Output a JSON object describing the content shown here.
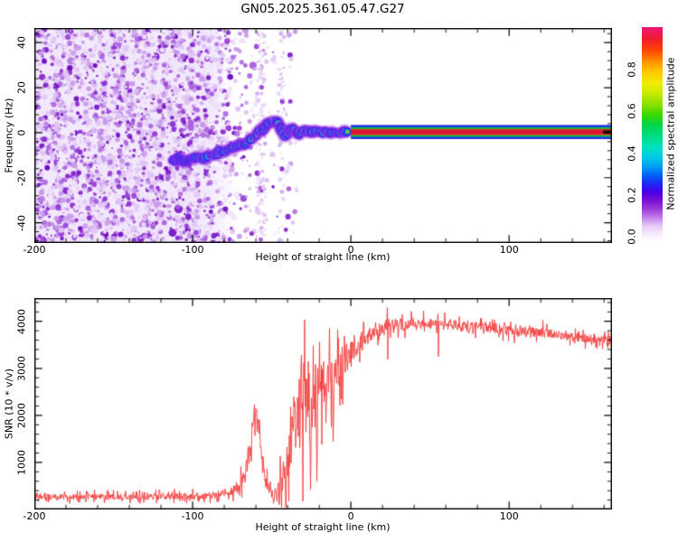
{
  "title": "GN05.2025.361.05.47.G27",
  "panels": {
    "spectrogram": {
      "xlabel": "Height of straight line (km)",
      "ylabel": "Frequency (Hz)",
      "x_tick_labels": [
        "-200",
        "-100",
        "0",
        "100"
      ],
      "y_tick_labels": [
        "40",
        "20",
        "0",
        "-20",
        "-40"
      ],
      "colorbar": {
        "label": "Normalized spectral amplitude",
        "tick_labels": [
          "0.0",
          "0.2",
          "0.4",
          "0.6",
          "0.8"
        ]
      }
    },
    "snr": {
      "xlabel": "Height of straight line (km)",
      "ylabel": "SNR (10 * v/v)",
      "x_tick_labels": [
        "-200",
        "-100",
        "0",
        "100"
      ],
      "y_tick_labels": [
        "1000",
        "2000",
        "3000",
        "4000"
      ]
    }
  },
  "chart_data": [
    {
      "type": "heatmap",
      "title": "GN05.2025.361.05.47.G27",
      "xlabel": "Height of straight line (km)",
      "ylabel": "Frequency (Hz)",
      "xlim": [
        -200,
        165
      ],
      "ylim": [
        -49,
        46.5
      ],
      "x_ticks": [
        -200,
        -100,
        0,
        100
      ],
      "x_minor_step": 20,
      "y_ticks": [
        40,
        20,
        0,
        -20,
        -40
      ],
      "y_minor_step": 4,
      "grid": false,
      "colorbar": {
        "label": "Normalized spectral amplitude",
        "ticks": [
          0,
          0.2,
          0.4,
          0.6,
          0.8
        ],
        "lim": [
          0,
          1
        ],
        "colormap": [
          [
            0.0,
            "#ffffff"
          ],
          [
            0.03,
            "#f6eefc"
          ],
          [
            0.07,
            "#e7cdf6"
          ],
          [
            0.11,
            "#c37fe8"
          ],
          [
            0.15,
            "#9b3bdc"
          ],
          [
            0.19,
            "#7a10d4"
          ],
          [
            0.23,
            "#4400e8"
          ],
          [
            0.27,
            "#1b2af5"
          ],
          [
            0.31,
            "#0064f8"
          ],
          [
            0.35,
            "#00a0f0"
          ],
          [
            0.39,
            "#00c8e6"
          ],
          [
            0.44,
            "#00e2c0"
          ],
          [
            0.49,
            "#00dc82"
          ],
          [
            0.54,
            "#00d44e"
          ],
          [
            0.59,
            "#38d800"
          ],
          [
            0.64,
            "#8ce000"
          ],
          [
            0.69,
            "#c8ea00"
          ],
          [
            0.74,
            "#f0ee00"
          ],
          [
            0.79,
            "#ffc800"
          ],
          [
            0.84,
            "#ff9000"
          ],
          [
            0.89,
            "#ff4600"
          ],
          [
            0.94,
            "#f01e28"
          ],
          [
            1.0,
            "#ee1478"
          ]
        ]
      },
      "noise_field": {
        "dense_range": [
          -200,
          -90
        ],
        "fade_range": [
          -90,
          -34
        ],
        "base_tint": "#f2e9fb",
        "palette": [
          [
            "#efe2fa",
            0.28
          ],
          [
            "#e0c4f4",
            0.24
          ],
          [
            "#c897ea",
            0.18
          ],
          [
            "#aa60dd",
            0.13
          ],
          [
            "#8c2bd2",
            0.1
          ],
          [
            "#7312c4",
            0.07
          ]
        ]
      },
      "vertical_streaks": [
        {
          "x": -57,
          "width": 6
        },
        {
          "x": -44,
          "width": 4
        }
      ],
      "trace": [
        {
          "x": -113,
          "f": -12.5,
          "a": 0.28
        },
        {
          "x": -109,
          "f": -11.5,
          "a": 0.32
        },
        {
          "x": -105,
          "f": -13.0,
          "a": 0.35
        },
        {
          "x": -101,
          "f": -12.0,
          "a": 0.38
        },
        {
          "x": -97,
          "f": -11.0,
          "a": 0.42
        },
        {
          "x": -93,
          "f": -11.5,
          "a": 0.45
        },
        {
          "x": -89,
          "f": -9.5,
          "a": 0.5
        },
        {
          "x": -86,
          "f": -10.0,
          "a": 0.5
        },
        {
          "x": -83,
          "f": -8.0,
          "a": 0.55
        },
        {
          "x": -80,
          "f": -8.5,
          "a": 0.52
        },
        {
          "x": -77,
          "f": -7.0,
          "a": 0.58
        },
        {
          "x": -74,
          "f": -6.5,
          "a": 0.6
        },
        {
          "x": -71,
          "f": -5.0,
          "a": 0.62
        },
        {
          "x": -68,
          "f": -5.5,
          "a": 0.6
        },
        {
          "x": -65,
          "f": -3.5,
          "a": 0.65
        },
        {
          "x": -62,
          "f": -2.0,
          "a": 0.68
        },
        {
          "x": -59,
          "f": -0.5,
          "a": 0.7
        },
        {
          "x": -56,
          "f": 1.5,
          "a": 0.72
        },
        {
          "x": -53,
          "f": 3.5,
          "a": 0.8
        },
        {
          "x": -50,
          "f": 4.8,
          "a": 0.85
        },
        {
          "x": -47,
          "f": 4.6,
          "a": 0.82
        },
        {
          "x": -45,
          "f": 3.5,
          "a": 0.75
        },
        {
          "x": -43,
          "f": -0.5,
          "a": 0.68
        },
        {
          "x": -41,
          "f": -1.5,
          "a": 0.65
        },
        {
          "x": -39,
          "f": 0.5,
          "a": 0.72
        },
        {
          "x": -37,
          "f": 1.8,
          "a": 0.78
        },
        {
          "x": -35,
          "f": 0.5,
          "a": 0.75
        },
        {
          "x": -33,
          "f": -0.8,
          "a": 0.78
        },
        {
          "x": -31,
          "f": 0.0,
          "a": 0.85
        },
        {
          "x": -29,
          "f": 1.0,
          "a": 0.88
        },
        {
          "x": -27,
          "f": 0.3,
          "a": 0.85
        },
        {
          "x": -25,
          "f": -0.3,
          "a": 0.85
        },
        {
          "x": -23,
          "f": 0.5,
          "a": 0.88
        },
        {
          "x": -21,
          "f": 0.0,
          "a": 0.9
        },
        {
          "x": -18,
          "f": 0.4,
          "a": 0.9
        },
        {
          "x": -15,
          "f": 0.1,
          "a": 0.92
        },
        {
          "x": -12,
          "f": 0.4,
          "a": 0.92
        },
        {
          "x": -9,
          "f": 0.2,
          "a": 0.94
        },
        {
          "x": -6,
          "f": 0.3,
          "a": 0.95
        },
        {
          "x": -3,
          "f": 0.25,
          "a": 0.95
        },
        {
          "x": -0.5,
          "f": 0.3,
          "a": 0.96
        }
      ],
      "straight_line": {
        "x_range": [
          0,
          165
        ],
        "frequency": 0.3,
        "layer_colors": [
          "#2222ee",
          "#00cc44",
          "#ee2222",
          "#cc1040"
        ],
        "end_cap_color": "#2a1212"
      }
    },
    {
      "type": "line",
      "series_color": "#f23b3b",
      "xlabel": "Height of straight line (km)",
      "ylabel": "SNR (10 * v/v)",
      "xlim": [
        -200,
        165
      ],
      "ylim": [
        0,
        4494
      ],
      "x_ticks": [
        -200,
        -100,
        0,
        100
      ],
      "x_minor_step": 20,
      "y_ticks": [
        1000,
        2000,
        3000,
        4000
      ],
      "y_minor_step": 200,
      "grid": false,
      "envelope": [
        [
          -200,
          270,
          85
        ],
        [
          -160,
          270,
          85
        ],
        [
          -120,
          275,
          85
        ],
        [
          -100,
          285,
          90
        ],
        [
          -90,
          300,
          95
        ],
        [
          -82,
          320,
          105
        ],
        [
          -76,
          370,
          130
        ],
        [
          -71,
          480,
          170
        ],
        [
          -67,
          700,
          240
        ],
        [
          -64,
          1250,
          350
        ],
        [
          -62,
          1750,
          300
        ],
        [
          -60,
          2000,
          260
        ],
        [
          -58,
          1650,
          350
        ],
        [
          -56,
          1000,
          300
        ],
        [
          -54,
          640,
          230
        ],
        [
          -52,
          460,
          190
        ],
        [
          -50,
          380,
          240
        ],
        [
          -48,
          340,
          240
        ],
        [
          -46,
          380,
          330
        ],
        [
          -44,
          520,
          450
        ],
        [
          -42,
          800,
          650
        ],
        [
          -40,
          1150,
          850
        ],
        [
          -38,
          1500,
          950
        ],
        [
          -36,
          1550,
          1000
        ],
        [
          -34,
          1700,
          1050
        ],
        [
          -32,
          2000,
          1150
        ],
        [
          -30,
          2250,
          1200
        ],
        [
          -28,
          2100,
          1200
        ],
        [
          -26,
          2200,
          1100
        ],
        [
          -24,
          2350,
          1000
        ],
        [
          -22,
          2450,
          950
        ],
        [
          -20,
          2500,
          900
        ],
        [
          -18,
          2550,
          850
        ],
        [
          -16,
          2500,
          850
        ],
        [
          -14,
          2650,
          750
        ],
        [
          -12,
          2750,
          700
        ],
        [
          -10,
          2850,
          650
        ],
        [
          -8,
          2950,
          600
        ],
        [
          -6,
          3050,
          520
        ],
        [
          -4,
          3150,
          470
        ],
        [
          -2,
          3250,
          420
        ],
        [
          0,
          3350,
          380
        ],
        [
          4,
          3500,
          300
        ],
        [
          8,
          3620,
          260
        ],
        [
          12,
          3720,
          220
        ],
        [
          16,
          3790,
          200
        ],
        [
          22,
          3860,
          185
        ],
        [
          30,
          3920,
          180
        ],
        [
          40,
          3950,
          175
        ],
        [
          50,
          3950,
          175
        ],
        [
          60,
          3920,
          170
        ],
        [
          70,
          3890,
          165
        ],
        [
          80,
          3870,
          165
        ],
        [
          90,
          3850,
          160
        ],
        [
          100,
          3830,
          160
        ],
        [
          110,
          3800,
          155
        ],
        [
          120,
          3760,
          155
        ],
        [
          130,
          3710,
          150
        ],
        [
          140,
          3670,
          150
        ],
        [
          150,
          3630,
          145
        ],
        [
          158,
          3590,
          145
        ],
        [
          165,
          3570,
          140
        ]
      ],
      "spikes": [
        [
          -61,
          2230
        ],
        [
          -59.5,
          2120
        ],
        [
          -48.8,
          130
        ],
        [
          -45.3,
          100
        ],
        [
          -31.1,
          3280
        ],
        [
          -29.3,
          4030
        ],
        [
          -26.9,
          3150
        ],
        [
          -25.6,
          420
        ],
        [
          -23.8,
          3480
        ],
        [
          -21.5,
          600
        ],
        [
          -19.9,
          3560
        ],
        [
          -13.4,
          3850
        ],
        [
          -11.2,
          1450
        ],
        [
          -7.8,
          3640
        ],
        [
          23,
          4290
        ],
        [
          55,
          4160
        ]
      ]
    }
  ]
}
